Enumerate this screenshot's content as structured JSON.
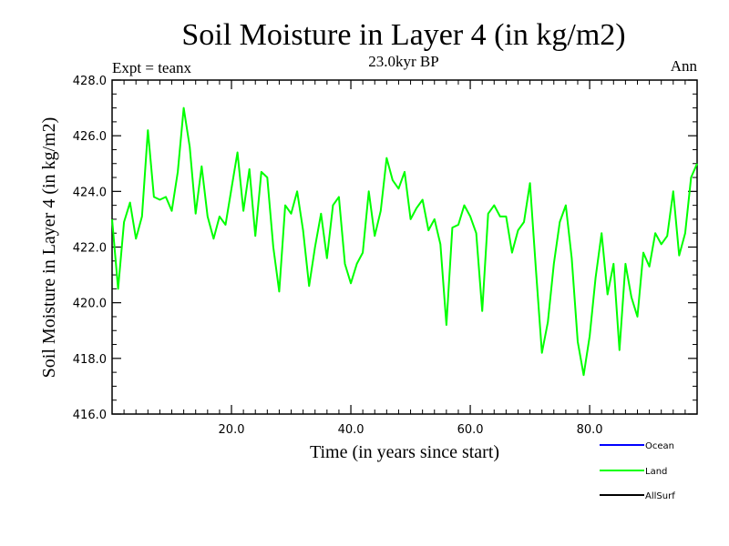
{
  "chart_data": {
    "type": "line",
    "title": "Soil Moisture in Layer 4 (in kg/m2)",
    "subtitle": "23.0kyr BP",
    "experiment_label": "Expt = teanx",
    "period_label": "Ann",
    "xlabel": "Time (in years since start)",
    "ylabel": "Soil Moisture in Layer 4 (in kg/m2)",
    "xlim": [
      0,
      98
    ],
    "ylim": [
      416.0,
      428.0
    ],
    "x_ticks": [
      20,
      40,
      60,
      80
    ],
    "x_tick_labels": [
      "20.0",
      "40.0",
      "60.0",
      "80.0"
    ],
    "y_ticks": [
      416,
      418,
      420,
      422,
      424,
      426,
      428
    ],
    "y_tick_labels": [
      "416.0",
      "418.0",
      "420.0",
      "422.0",
      "424.0",
      "426.0",
      "428.0"
    ],
    "legend": [
      {
        "name": "Ocean",
        "color": "#0000ff"
      },
      {
        "name": "Land",
        "color": "#00ff00"
      },
      {
        "name": "AllSurf",
        "color": "#000000"
      }
    ],
    "series": [
      {
        "name": "Land",
        "color": "#00ff00",
        "x": [
          0,
          1,
          2,
          3,
          4,
          5,
          6,
          7,
          8,
          9,
          10,
          11,
          12,
          13,
          14,
          15,
          16,
          17,
          18,
          19,
          20,
          21,
          22,
          23,
          24,
          25,
          26,
          27,
          28,
          29,
          30,
          31,
          32,
          33,
          34,
          35,
          36,
          37,
          38,
          39,
          40,
          41,
          42,
          43,
          44,
          45,
          46,
          47,
          48,
          49,
          50,
          51,
          52,
          53,
          54,
          55,
          56,
          57,
          58,
          59,
          60,
          61,
          62,
          63,
          64,
          65,
          66,
          67,
          68,
          69,
          70,
          71,
          72,
          73,
          74,
          75,
          76,
          77,
          78,
          79,
          80,
          81,
          82,
          83,
          84,
          85,
          86,
          87,
          88,
          89,
          90,
          91,
          92,
          93,
          94,
          95,
          96,
          97,
          98
        ],
        "values": [
          423.0,
          420.5,
          422.9,
          423.6,
          422.3,
          423.1,
          426.2,
          423.8,
          423.7,
          423.8,
          423.3,
          424.7,
          427.0,
          425.6,
          423.2,
          424.9,
          423.1,
          422.3,
          423.1,
          422.8,
          424.1,
          425.4,
          423.3,
          424.8,
          422.4,
          424.7,
          424.5,
          422.0,
          420.4,
          423.5,
          423.2,
          424.0,
          422.6,
          420.6,
          422.0,
          423.2,
          421.6,
          423.5,
          423.8,
          421.4,
          420.7,
          421.4,
          421.8,
          424.0,
          422.4,
          423.3,
          425.2,
          424.4,
          424.1,
          424.7,
          423.0,
          423.4,
          423.7,
          422.6,
          423.0,
          422.1,
          419.2,
          422.7,
          422.8,
          423.5,
          423.1,
          422.5,
          419.7,
          423.2,
          423.5,
          423.1,
          423.1,
          421.8,
          422.6,
          422.9,
          424.3,
          421.2,
          418.2,
          419.3,
          421.4,
          422.9,
          423.5,
          421.6,
          418.6,
          417.4,
          418.8,
          420.9,
          422.5,
          420.3,
          421.4,
          418.3,
          421.4,
          420.2,
          419.5,
          421.8,
          421.3,
          422.5,
          422.1,
          422.4,
          424.0,
          421.7,
          422.5,
          424.5,
          425.0
        ]
      }
    ]
  }
}
